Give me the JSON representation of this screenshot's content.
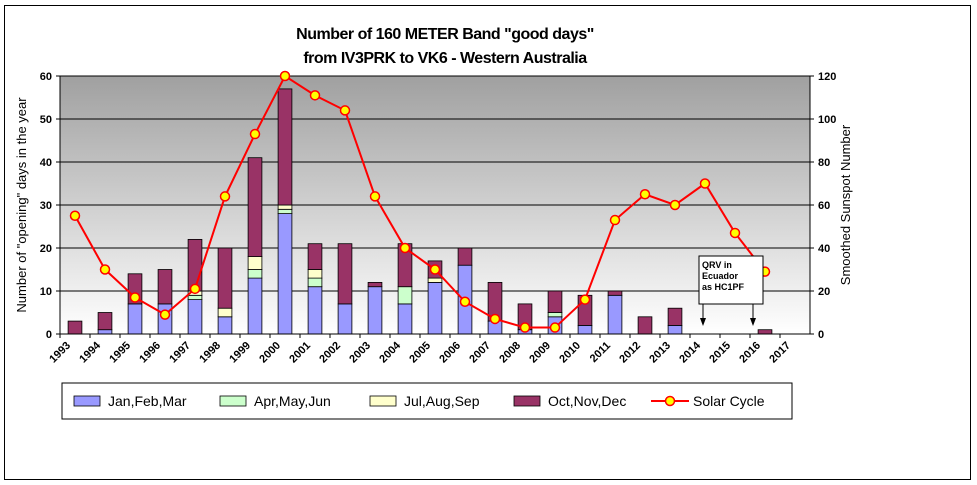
{
  "chart_data": {
    "type": "bar",
    "title_line1": "Number of 160 METER Band \"good days\"",
    "title_line2": "from IV3PRK to VK6 - Western Australia",
    "ylabel": "Number of \"opening\" days in the year",
    "y2label": "Smoothed Sunspot Number",
    "ylim": [
      0,
      60
    ],
    "y_ticks": [
      "0",
      "10",
      "20",
      "30",
      "40",
      "50",
      "60"
    ],
    "y2lim": [
      0,
      120
    ],
    "y2_ticks": [
      "0",
      "20",
      "40",
      "60",
      "80",
      "100",
      "120"
    ],
    "categories": [
      "1993",
      "1994",
      "1995",
      "1996",
      "1997",
      "1998",
      "1999",
      "2000",
      "2001",
      "2002",
      "2003",
      "2004",
      "2005",
      "2006",
      "2007",
      "2008",
      "2009",
      "2010",
      "2011",
      "2012",
      "2013",
      "2014",
      "2015",
      "2016",
      "2017"
    ],
    "series": [
      {
        "name": "Jan,Feb,Mar",
        "color": "#9999ff",
        "values": [
          0,
          1,
          7,
          7,
          8,
          4,
          13,
          28,
          11,
          7,
          11,
          7,
          12,
          16,
          3,
          1,
          4,
          2,
          9,
          0,
          2,
          0,
          0,
          0,
          0
        ]
      },
      {
        "name": "Apr,May,Jun",
        "color": "#ccffcc",
        "values": [
          0,
          0,
          0,
          0,
          1,
          0,
          2,
          1,
          2,
          0,
          0,
          4,
          0,
          0,
          0,
          0,
          1,
          0,
          0,
          0,
          0,
          0,
          0,
          0,
          0
        ]
      },
      {
        "name": "Jul,Aug,Sep",
        "color": "#ffffcc",
        "values": [
          0,
          0,
          0,
          0,
          1,
          2,
          3,
          1,
          2,
          0,
          0,
          0,
          1,
          0,
          0,
          0,
          0,
          0,
          0,
          0,
          0,
          0,
          0,
          0,
          0
        ]
      },
      {
        "name": "Oct,Nov,Dec",
        "color": "#993366",
        "values": [
          3,
          4,
          7,
          8,
          12,
          14,
          23,
          27,
          6,
          14,
          1,
          10,
          4,
          4,
          9,
          6,
          5,
          7,
          1,
          4,
          4,
          0,
          0,
          1,
          0
        ]
      }
    ],
    "line_series": {
      "name": "Solar Cycle",
      "color": "#ff0000",
      "marker_color": "#ffff00",
      "values": [
        55,
        30,
        17,
        9,
        21,
        64,
        93,
        120,
        111,
        104,
        64,
        40,
        30,
        15,
        7,
        3,
        3,
        16,
        53,
        65,
        60,
        70,
        47,
        29,
        null
      ]
    },
    "annotation": {
      "lines": [
        "QRV in",
        "Ecuador",
        "as HC1PF"
      ]
    },
    "legend": {
      "placement": "bottom",
      "items": [
        {
          "label": "Jan,Feb,Mar",
          "color": "#9999ff",
          "kind": "box"
        },
        {
          "label": "Apr,May,Jun",
          "color": "#ccffcc",
          "kind": "box"
        },
        {
          "label": "Jul,Aug,Sep",
          "color": "#ffffcc",
          "kind": "box"
        },
        {
          "label": "Oct,Nov,Dec",
          "color": "#993366",
          "kind": "box"
        },
        {
          "label": "Solar Cycle",
          "color": "#ff0000",
          "kind": "line"
        }
      ]
    },
    "grid": true,
    "plot_background": "gradient grey"
  }
}
